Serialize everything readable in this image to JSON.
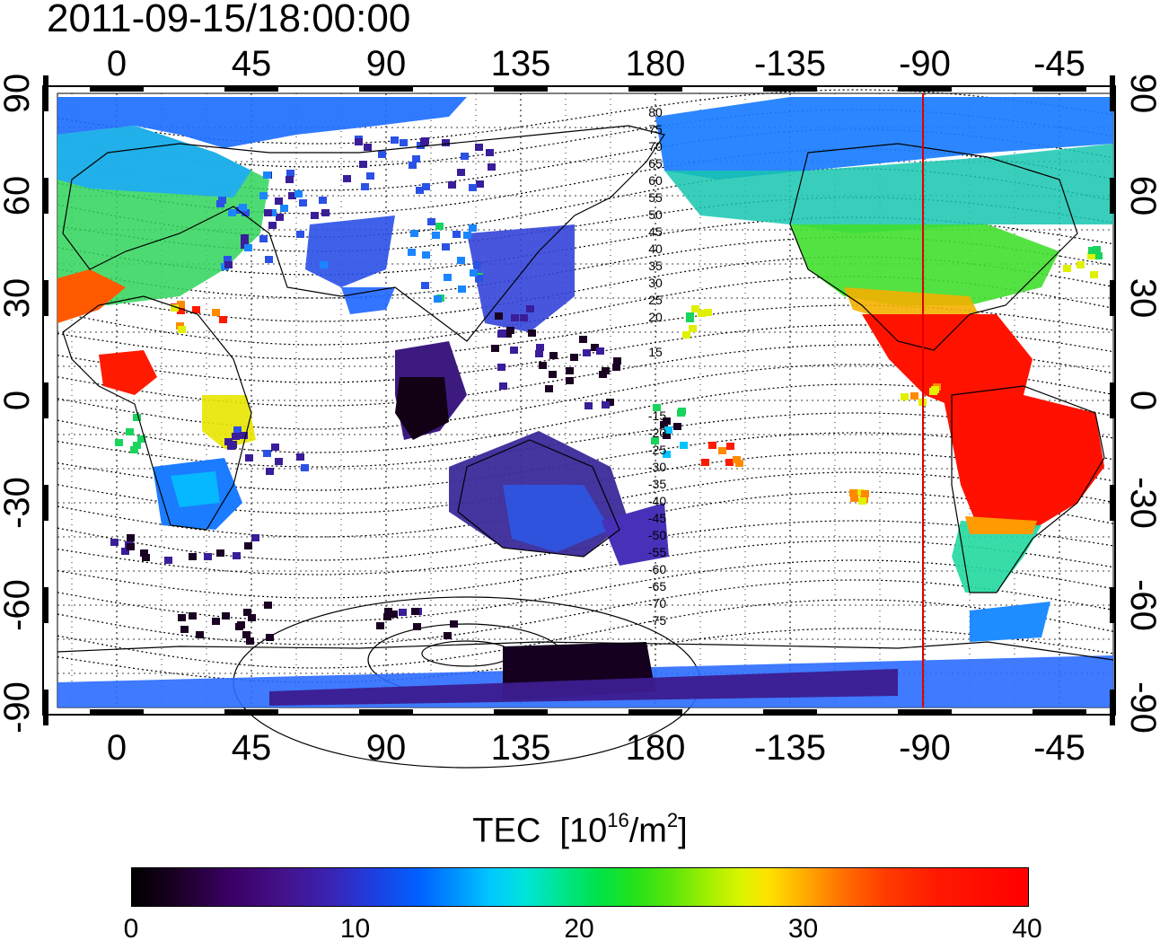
{
  "title": "2011-09-15/18:00:00",
  "map": {
    "lon_ticks": [
      "0",
      "45",
      "90",
      "135",
      "180",
      "-135",
      "-90",
      "-45"
    ],
    "lat_ticks": [
      "90",
      "60",
      "30",
      "0",
      "-30",
      "-60",
      "-90"
    ],
    "contour_labels_north": [
      "80",
      "75",
      "70",
      "65",
      "60",
      "55",
      "50",
      "45",
      "40",
      "35",
      "30",
      "25",
      "20",
      "15"
    ],
    "contour_labels_south": [
      "-15",
      "-20",
      "-25",
      "-30",
      "-35",
      "-40",
      "-45",
      "-50",
      "-55",
      "-60",
      "-65",
      "-70",
      "-75"
    ],
    "colors": {
      "grid": "#000000",
      "marker_line": "#e00000",
      "land_outline": "#000000"
    }
  },
  "colorbar": {
    "title": "TEC",
    "unit_base": "[10",
    "unit_exp": "16",
    "unit_mid": "/m",
    "unit_exp2": "2",
    "unit_end": "]",
    "ticks": [
      "0",
      "10",
      "20",
      "30",
      "40"
    ],
    "range": [
      0,
      40
    ]
  }
}
